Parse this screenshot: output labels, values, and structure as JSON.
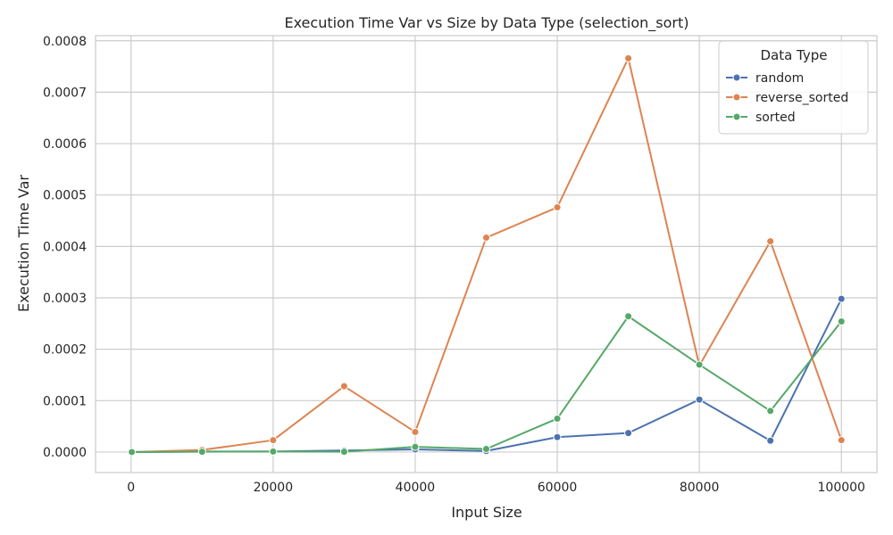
{
  "chart_data": {
    "type": "line",
    "title": "Execution Time Var vs Size by Data Type (selection_sort)",
    "xlabel": "Input Size",
    "ylabel": "Execution Time Var",
    "x": [
      100,
      10000,
      20000,
      30000,
      40000,
      50000,
      60000,
      70000,
      80000,
      90000,
      100000
    ],
    "xlim": [
      -5000,
      105000
    ],
    "ylim": [
      -4e-05,
      0.00081
    ],
    "xticks": [
      0,
      20000,
      40000,
      60000,
      80000,
      100000
    ],
    "xtick_labels": [
      "0",
      "20000",
      "40000",
      "60000",
      "80000",
      "100000"
    ],
    "yticks": [
      0,
      0.0001,
      0.0002,
      0.0003,
      0.0004,
      0.0005,
      0.0006,
      0.0007,
      0.0008
    ],
    "ytick_labels": [
      "0.0000",
      "0.0001",
      "0.0002",
      "0.0003",
      "0.0004",
      "0.0005",
      "0.0006",
      "0.0007",
      "0.0008"
    ],
    "grid": true,
    "legend": {
      "title": "Data Type",
      "placement": "top-right"
    },
    "series": [
      {
        "name": "random",
        "color": "#4c72b0",
        "values": [
          0,
          1e-06,
          1e-06,
          3e-06,
          5e-06,
          2e-06,
          2.9e-05,
          3.7e-05,
          0.000102,
          2.2e-05,
          0.000298
        ]
      },
      {
        "name": "reverse_sorted",
        "color": "#dd8452",
        "values": [
          0,
          4e-06,
          2.3e-05,
          0.000128,
          3.9e-05,
          0.000417,
          0.000476,
          0.000766,
          0.000168,
          0.00041,
          2.3e-05
        ]
      },
      {
        "name": "sorted",
        "color": "#55a868",
        "values": [
          0,
          5e-07,
          1e-06,
          5e-07,
          1e-05,
          6e-06,
          6.5e-05,
          0.000264,
          0.00017,
          8e-05,
          0.000254
        ]
      }
    ]
  }
}
